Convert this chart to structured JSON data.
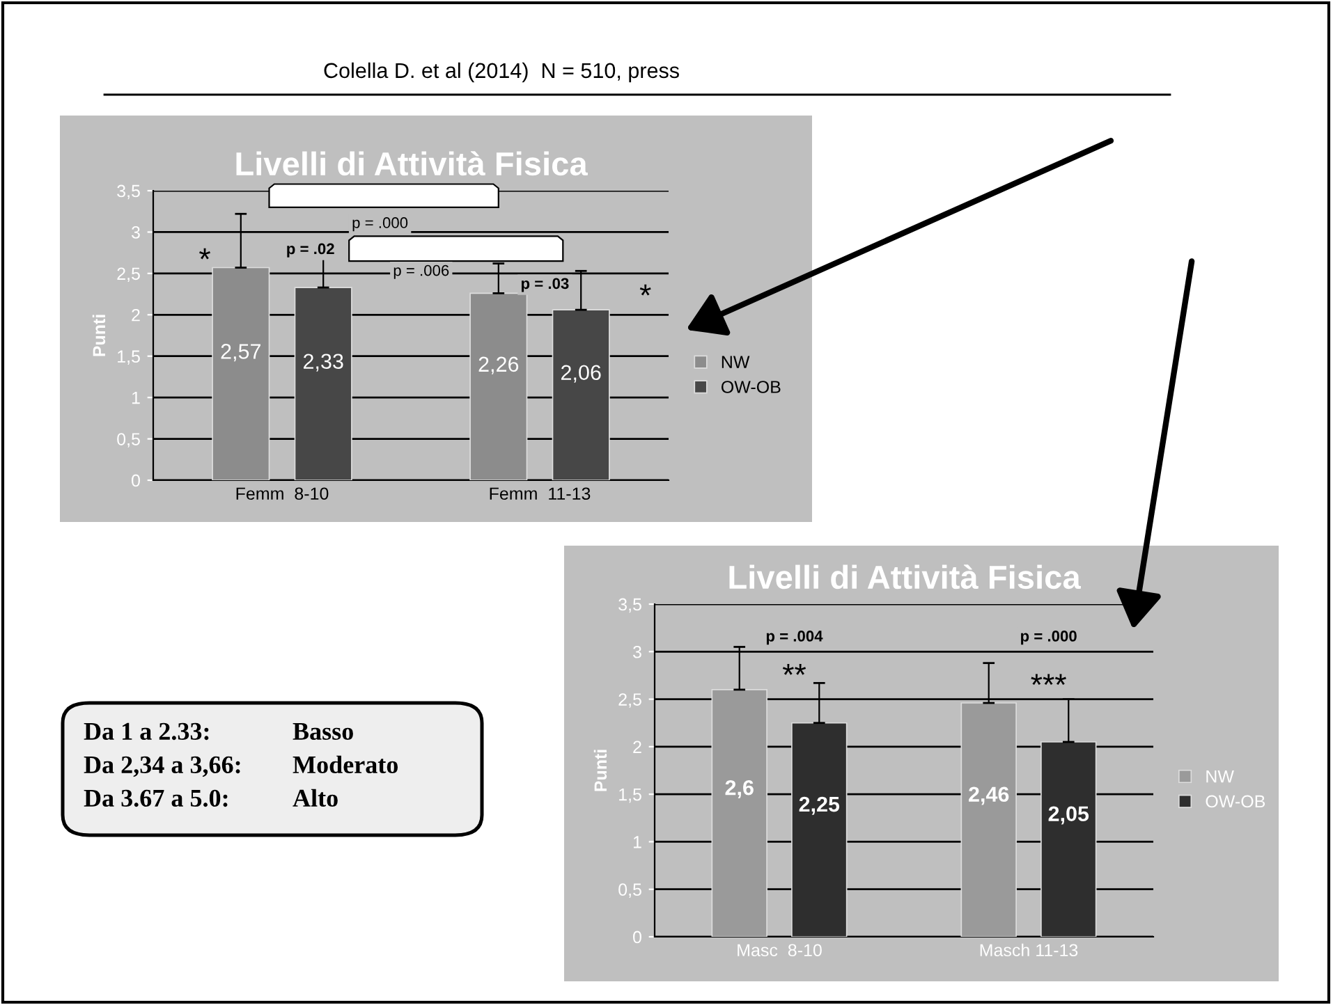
{
  "chart_data": [
    {
      "type": "bar",
      "title": "Livelli di Attività Fisica",
      "ylabel": "Punti",
      "categories": [
        "Femm  8-10",
        "Femm  11-13"
      ],
      "series": [
        {
          "name": "NW",
          "color": "#8c8c8c",
          "values": [
            2.57,
            2.26
          ],
          "errors": [
            [
              2.57,
              3.22
            ],
            [
              2.26,
              2.62
            ]
          ]
        },
        {
          "name": "OW-OB",
          "color": "#474747",
          "values": [
            2.33,
            2.06
          ],
          "errors": [
            [
              2.33,
              2.87
            ],
            [
              2.06,
              2.53
            ]
          ]
        }
      ],
      "value_labels": [
        [
          "2,57",
          "2,26"
        ],
        [
          "2,33",
          "2,06"
        ]
      ],
      "ylim": [
        0,
        3.5
      ],
      "yticks": [
        0,
        {
          "value": 0.5,
          "label": "0,5"
        },
        1,
        {
          "value": 1.5,
          "label": "1,5"
        },
        2,
        {
          "value": 2.5,
          "label": "2,5"
        },
        3,
        {
          "value": 3.5,
          "label": "3,5"
        }
      ],
      "grid": "y",
      "legend": "right",
      "annotations": [
        "*",
        "p = .02",
        "p = .000",
        "p = .006",
        "p = .03",
        "*"
      ]
    },
    {
      "type": "bar",
      "title": "Livelli di Attività Fisica",
      "ylabel": "Punti",
      "categories": [
        "Masc  8-10",
        "Masch 11-13"
      ],
      "series": [
        {
          "name": "NW",
          "color": "#9a9a9a",
          "values": [
            2.6,
            2.46
          ],
          "errors": [
            [
              2.6,
              3.05
            ],
            [
              2.46,
              2.88
            ]
          ]
        },
        {
          "name": "OW-OB",
          "color": "#2e2e2e",
          "values": [
            2.25,
            2.05
          ],
          "errors": [
            [
              2.25,
              2.67
            ],
            [
              2.05,
              2.5
            ]
          ]
        }
      ],
      "value_labels": [
        [
          "2,6",
          "2,46"
        ],
        [
          "2,25",
          "2,05"
        ]
      ],
      "ylim": [
        0,
        3.5
      ],
      "yticks": [
        0,
        {
          "value": 0.5,
          "label": "0,5"
        },
        1,
        {
          "value": 1.5,
          "label": "1,5"
        },
        2,
        {
          "value": 2.5,
          "label": "2,5"
        },
        3,
        {
          "value": 3.5,
          "label": "3,5"
        }
      ],
      "grid": "y",
      "legend": "right",
      "annotations": [
        "p = .004",
        "**",
        "p = .000",
        "***"
      ]
    },
    {
      "type": "other",
      "annotations": [
        "Colella D. et al (2014)  N = 510, press",
        "Da 1 a 2.33:",
        "Basso",
        "Da 2,34 a 3,66:",
        "Moderato",
        "Da 3.67 a 5.0:",
        "Alto"
      ]
    }
  ]
}
